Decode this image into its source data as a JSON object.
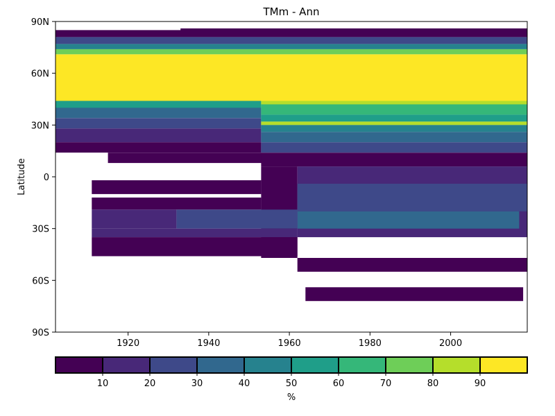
{
  "chart_data": {
    "type": "heatmap",
    "title": "TMm - Ann",
    "xlabel": "",
    "ylabel": "Latitude",
    "xlim": [
      1902,
      2019
    ],
    "ylim": [
      -90,
      90
    ],
    "x_ticks": [
      1920,
      1940,
      1960,
      1980,
      2000
    ],
    "y_ticks": [
      {
        "value": 90,
        "label": "90N"
      },
      {
        "value": 60,
        "label": "60N"
      },
      {
        "value": 30,
        "label": "30N"
      },
      {
        "value": 0,
        "label": "0"
      },
      {
        "value": -30,
        "label": "30S"
      },
      {
        "value": -60,
        "label": "60S"
      },
      {
        "value": -90,
        "label": "90S"
      }
    ],
    "colorbar": {
      "label": "%",
      "bounds": [
        0,
        10,
        20,
        30,
        40,
        50,
        60,
        70,
        80,
        90,
        100
      ],
      "tick_values": [
        10,
        20,
        30,
        40,
        50,
        60,
        70,
        80,
        90
      ],
      "colors": [
        "#440154",
        "#482878",
        "#3e4989",
        "#31688e",
        "#26828e",
        "#1f9e89",
        "#35b779",
        "#6ece58",
        "#b5de2b",
        "#fde725"
      ]
    },
    "grid": false,
    "regions": [
      {
        "x": [
          1902,
          2019
        ],
        "lat": [
          44,
          71
        ],
        "value": 98
      },
      {
        "x": [
          1902,
          2019
        ],
        "lat": [
          71,
          74
        ],
        "value": 70
      },
      {
        "x": [
          1902,
          2019
        ],
        "lat": [
          74,
          77
        ],
        "value": 45
      },
      {
        "x": [
          1902,
          2019
        ],
        "lat": [
          77,
          81
        ],
        "value": 25
      },
      {
        "x": [
          1902,
          2019
        ],
        "lat": [
          81,
          85
        ],
        "value": 5
      },
      {
        "x": [
          1933,
          2019
        ],
        "lat": [
          85,
          86
        ],
        "value": 5
      },
      {
        "x": [
          1902,
          1953
        ],
        "lat": [
          40,
          44
        ],
        "value": 55
      },
      {
        "x": [
          1902,
          1953
        ],
        "lat": [
          34,
          40
        ],
        "value": 38
      },
      {
        "x": [
          1902,
          1953
        ],
        "lat": [
          28,
          34
        ],
        "value": 25
      },
      {
        "x": [
          1902,
          1953
        ],
        "lat": [
          20,
          28
        ],
        "value": 10
      },
      {
        "x": [
          1902,
          1953
        ],
        "lat": [
          14,
          20
        ],
        "value": 5
      },
      {
        "x": [
          1915,
          1953
        ],
        "lat": [
          8,
          14
        ],
        "value": 5
      },
      {
        "x": [
          1953,
          2019
        ],
        "lat": [
          42,
          44
        ],
        "value": 85
      },
      {
        "x": [
          1953,
          2019
        ],
        "lat": [
          36,
          42
        ],
        "value": 65
      },
      {
        "x": [
          1953,
          2019
        ],
        "lat": [
          32,
          36
        ],
        "value": 55
      },
      {
        "x": [
          1953,
          2019
        ],
        "lat": [
          30,
          32
        ],
        "value": 85
      },
      {
        "x": [
          1953,
          2019
        ],
        "lat": [
          26,
          30
        ],
        "value": 48
      },
      {
        "x": [
          1953,
          2019
        ],
        "lat": [
          20,
          26
        ],
        "value": 35
      },
      {
        "x": [
          1953,
          2019
        ],
        "lat": [
          14,
          20
        ],
        "value": 25
      },
      {
        "x": [
          1953,
          2019
        ],
        "lat": [
          6,
          14
        ],
        "value": 5
      },
      {
        "x": [
          1953,
          1962
        ],
        "lat": [
          -47,
          6
        ],
        "value": 5
      },
      {
        "x": [
          1962,
          2019
        ],
        "lat": [
          -55,
          -47
        ],
        "value": 5
      },
      {
        "x": [
          1962,
          2019
        ],
        "lat": [
          -35,
          6
        ],
        "value": 15
      },
      {
        "x": [
          1962,
          2019
        ],
        "lat": [
          -20,
          -4
        ],
        "value": 25
      },
      {
        "x": [
          1962,
          2017
        ],
        "lat": [
          -30,
          -20
        ],
        "value": 33
      },
      {
        "x": [
          1911,
          1953
        ],
        "lat": [
          -10,
          -2
        ],
        "value": 5
      },
      {
        "x": [
          1911,
          1953
        ],
        "lat": [
          -19,
          -12
        ],
        "value": 5
      },
      {
        "x": [
          1911,
          1932
        ],
        "lat": [
          -30,
          -19
        ],
        "value": 15
      },
      {
        "x": [
          1932,
          1962
        ],
        "lat": [
          -30,
          -19
        ],
        "value": 25
      },
      {
        "x": [
          1911,
          1962
        ],
        "lat": [
          -35,
          -30
        ],
        "value": 15
      },
      {
        "x": [
          1911,
          1962
        ],
        "lat": [
          -46,
          -35
        ],
        "value": 5
      },
      {
        "x": [
          1964,
          2018
        ],
        "lat": [
          -72,
          -64
        ],
        "value": 5
      }
    ]
  }
}
